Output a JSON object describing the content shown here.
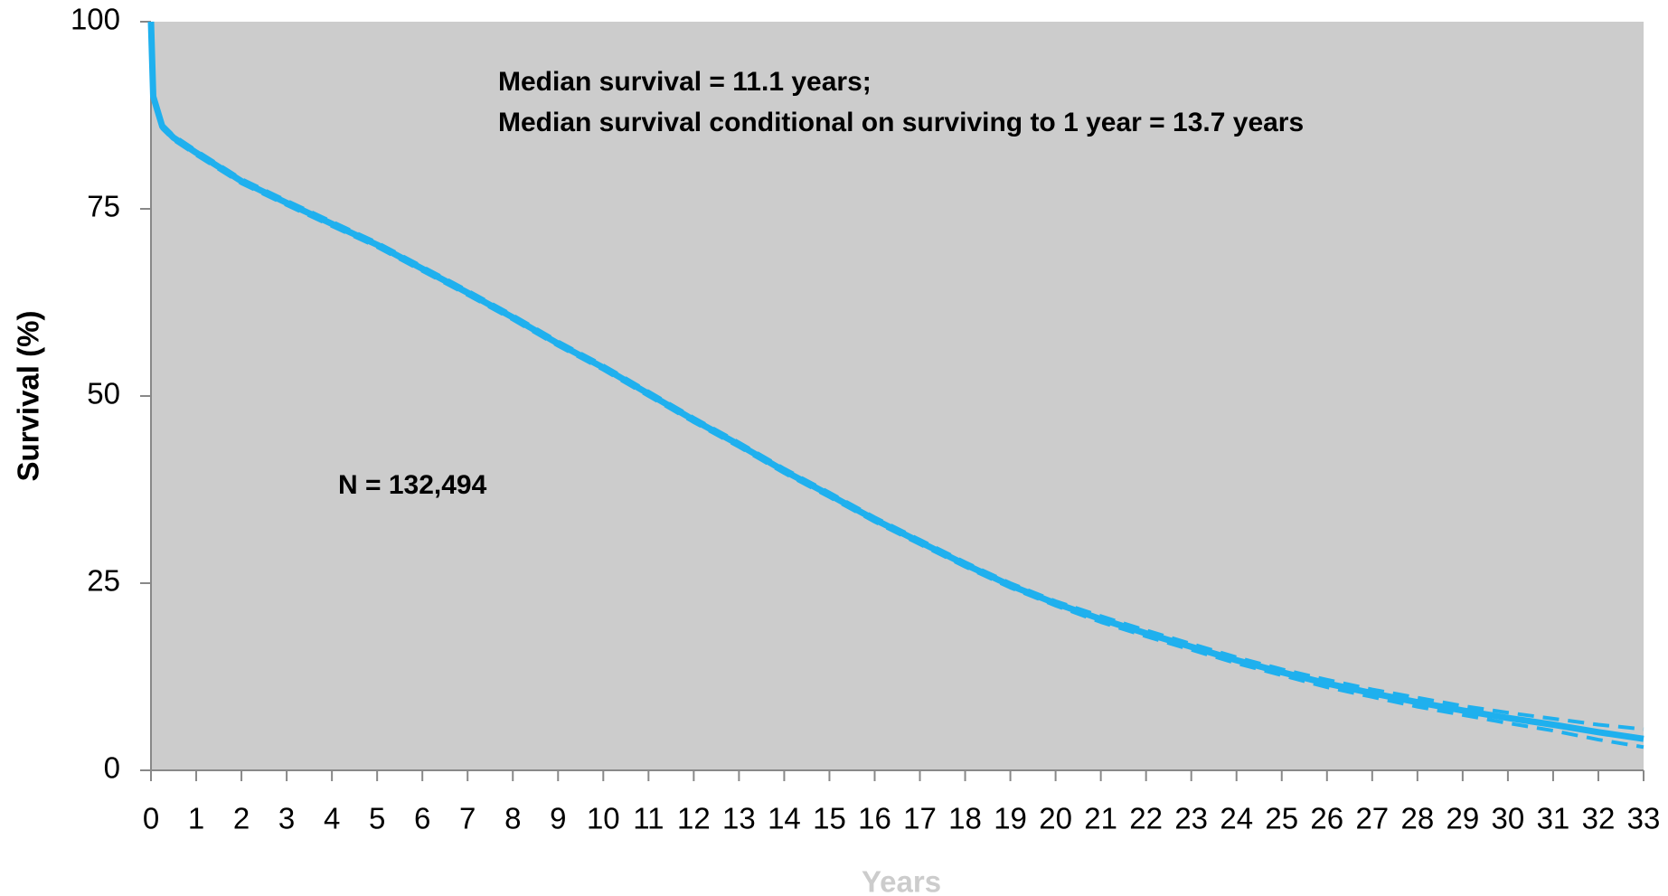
{
  "chart_data": {
    "type": "line",
    "annotations": [
      "Median survival = 11.1 years;",
      "Median survival conditional on surviving to 1 year = 13.7 years",
      "N = 132,494"
    ],
    "xlabel": "Years",
    "ylabel": "Survival (%)",
    "x": [
      0,
      0.05,
      0.25,
      0.5,
      1,
      2,
      3,
      4,
      5,
      6,
      7,
      8,
      9,
      10,
      11,
      12,
      13,
      14,
      15,
      16,
      17,
      18,
      19,
      20,
      21,
      22,
      23,
      24,
      25,
      26,
      27,
      28,
      29,
      30,
      31,
      32,
      33
    ],
    "series": [
      {
        "color": "#1fb0ee",
        "dashed": false,
        "values": [
          100,
          90,
          86,
          84.5,
          82.5,
          78.7,
          75.8,
          73,
          70.2,
          67,
          63.8,
          60.5,
          57,
          53.8,
          50.3,
          46.8,
          43.5,
          40,
          36.8,
          33.5,
          30.5,
          27.5,
          24.7,
          22.3,
          20.2,
          18.3,
          16.5,
          14.7,
          13.1,
          11.6,
          10.3,
          9.1,
          8,
          7,
          6.1,
          5.1,
          4.2
        ]
      },
      {
        "color": "#1fb0ee",
        "dashed": true,
        "values": [
          100,
          90.3,
          86.3,
          84.8,
          82.8,
          79,
          76.1,
          73.3,
          70.5,
          67.3,
          64.1,
          60.8,
          57.3,
          54.1,
          50.6,
          47.1,
          43.8,
          40.3,
          37.1,
          33.8,
          30.8,
          27.8,
          25,
          22.6,
          20.6,
          18.7,
          16.9,
          15.1,
          13.5,
          12.1,
          10.8,
          9.7,
          8.6,
          7.7,
          6.9,
          6.1,
          5.5
        ]
      },
      {
        "color": "#1fb0ee",
        "dashed": true,
        "values": [
          100,
          89.7,
          85.7,
          84.2,
          82.2,
          78.4,
          75.5,
          72.7,
          69.9,
          66.7,
          63.5,
          60.2,
          56.7,
          53.5,
          50,
          46.5,
          43.2,
          39.7,
          36.5,
          33.2,
          30.2,
          27.2,
          24.4,
          22,
          19.8,
          17.9,
          16.1,
          14.3,
          12.7,
          11.1,
          9.8,
          8.5,
          7.4,
          6.3,
          5.3,
          4.1,
          3.1
        ]
      }
    ],
    "xlim": [
      0,
      33
    ],
    "xticks": [
      0,
      1,
      2,
      3,
      4,
      5,
      6,
      7,
      8,
      9,
      10,
      11,
      12,
      13,
      14,
      15,
      16,
      17,
      18,
      19,
      20,
      21,
      22,
      23,
      24,
      25,
      26,
      27,
      28,
      29,
      30,
      31,
      32,
      33
    ],
    "ylim": [
      0,
      100
    ],
    "yticks": [
      0,
      25,
      50,
      75,
      100
    ],
    "plot_background": "#cccccc",
    "grid": false
  }
}
